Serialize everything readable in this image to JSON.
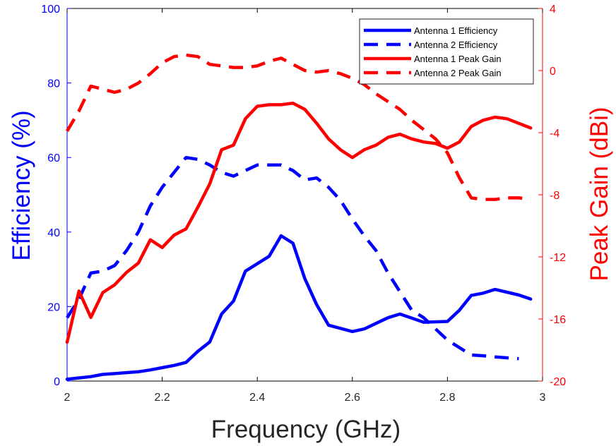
{
  "chart_data": {
    "type": "line",
    "xlabel": "Frequency (GHz)",
    "ylabel_left": "Efficiency (%)",
    "ylabel_right": "Peak Gain (dBi)",
    "xlim": [
      2,
      3
    ],
    "ylim_left": [
      0,
      100
    ],
    "ylim_right": [
      -20,
      4
    ],
    "x_ticks": [
      "2",
      "2.2",
      "2.4",
      "2.6",
      "2.8",
      "3"
    ],
    "y_left_ticks": [
      "0",
      "20",
      "40",
      "60",
      "80",
      "100"
    ],
    "y_right_ticks": [
      "-20",
      "-16",
      "-12",
      "-8",
      "-4",
      "0",
      "4"
    ],
    "grid": false,
    "legend_position": "top-right",
    "colors": {
      "efficiency": "#0000ff",
      "gain": "#ff0000",
      "axis": "#000000"
    },
    "series": [
      {
        "name": "Antenna 1 Efficiency",
        "axis": "left",
        "color": "#0000ff",
        "dash": "solid",
        "x": [
          2.0,
          2.05,
          2.075,
          2.1,
          2.15,
          2.175,
          2.2,
          2.225,
          2.25,
          2.275,
          2.3,
          2.325,
          2.35,
          2.375,
          2.4,
          2.425,
          2.45,
          2.475,
          2.5,
          2.525,
          2.55,
          2.6,
          2.625,
          2.65,
          2.675,
          2.7,
          2.725,
          2.75,
          2.8,
          2.825,
          2.85,
          2.875,
          2.9,
          2.95,
          2.975
        ],
        "y": [
          0.5,
          1.2,
          1.8,
          2.0,
          2.5,
          3.0,
          3.6,
          4.2,
          5.0,
          8.0,
          10.5,
          18.0,
          21.5,
          29.5,
          31.5,
          33.5,
          39.0,
          37.0,
          27.5,
          20.5,
          15.0,
          13.3,
          14.0,
          15.5,
          17.0,
          18.0,
          16.9,
          15.8,
          16.0,
          19.0,
          23.0,
          23.6,
          24.6,
          23.1,
          22.0
        ]
      },
      {
        "name": "Antenna 2 Efficiency",
        "axis": "left",
        "color": "#0000ff",
        "dash": "dashed",
        "x": [
          2.0,
          2.025,
          2.05,
          2.075,
          2.1,
          2.125,
          2.15,
          2.175,
          2.2,
          2.225,
          2.25,
          2.275,
          2.3,
          2.325,
          2.35,
          2.375,
          2.4,
          2.425,
          2.45,
          2.475,
          2.5,
          2.525,
          2.55,
          2.575,
          2.6,
          2.625,
          2.65,
          2.675,
          2.7,
          2.725,
          2.75,
          2.775,
          2.8,
          2.825,
          2.85,
          2.875,
          2.9,
          2.95
        ],
        "y": [
          17.0,
          22.0,
          29.0,
          29.5,
          31.0,
          35.0,
          40.0,
          47.0,
          52.0,
          56.0,
          60.0,
          59.5,
          58.0,
          56.0,
          55.0,
          56.5,
          58.0,
          58.0,
          58.0,
          56.5,
          54.0,
          54.5,
          52.0,
          48.5,
          43.5,
          39.0,
          35.0,
          29.0,
          24.0,
          19.0,
          17.0,
          14.0,
          11.0,
          9.0,
          7.0,
          6.8,
          6.5,
          6.0
        ]
      },
      {
        "name": "Antenna 1 Peak Gain",
        "axis": "right",
        "color": "#ff0000",
        "dash": "solid",
        "x": [
          2.0,
          2.025,
          2.05,
          2.075,
          2.1,
          2.125,
          2.15,
          2.175,
          2.2,
          2.225,
          2.25,
          2.275,
          2.3,
          2.325,
          2.35,
          2.375,
          2.4,
          2.425,
          2.45,
          2.475,
          2.5,
          2.525,
          2.55,
          2.575,
          2.6,
          2.625,
          2.65,
          2.675,
          2.7,
          2.725,
          2.75,
          2.775,
          2.8,
          2.825,
          2.85,
          2.875,
          2.9,
          2.925,
          2.95,
          2.975
        ],
        "y": [
          -17.5,
          -14.2,
          -15.9,
          -14.3,
          -13.8,
          -13.0,
          -12.4,
          -10.9,
          -11.4,
          -10.6,
          -10.2,
          -8.8,
          -7.3,
          -5.1,
          -4.8,
          -3.1,
          -2.3,
          -2.2,
          -2.2,
          -2.1,
          -2.5,
          -3.4,
          -4.4,
          -5.1,
          -5.6,
          -5.1,
          -4.8,
          -4.3,
          -4.1,
          -4.4,
          -4.6,
          -4.7,
          -5.0,
          -4.6,
          -3.6,
          -3.2,
          -3.0,
          -3.1,
          -3.4,
          -3.7
        ]
      },
      {
        "name": "Antenna 2 Peak Gain",
        "axis": "right",
        "color": "#ff0000",
        "dash": "dashed",
        "x": [
          2.0,
          2.025,
          2.05,
          2.075,
          2.1,
          2.125,
          2.15,
          2.175,
          2.2,
          2.225,
          2.25,
          2.275,
          2.3,
          2.325,
          2.35,
          2.375,
          2.4,
          2.425,
          2.45,
          2.475,
          2.5,
          2.525,
          2.55,
          2.575,
          2.6,
          2.625,
          2.65,
          2.675,
          2.7,
          2.725,
          2.75,
          2.775,
          2.8,
          2.825,
          2.85,
          2.875,
          2.9,
          2.925,
          2.95,
          2.975
        ],
        "y": [
          -3.9,
          -2.6,
          -1.0,
          -1.2,
          -1.4,
          -1.2,
          -0.8,
          -0.2,
          0.5,
          0.9,
          1.0,
          0.9,
          0.4,
          0.3,
          0.2,
          0.2,
          0.3,
          0.6,
          0.8,
          0.4,
          0.0,
          -0.1,
          0.0,
          -0.2,
          -0.5,
          -0.9,
          -1.5,
          -2.0,
          -2.5,
          -3.2,
          -3.8,
          -4.4,
          -5.3,
          -6.9,
          -8.2,
          -8.3,
          -8.3,
          -8.2,
          -8.2,
          -8.3
        ]
      }
    ]
  }
}
